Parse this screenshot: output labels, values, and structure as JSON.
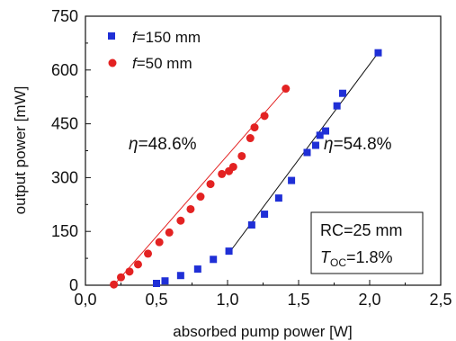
{
  "chart_data": {
    "type": "scatter",
    "xlabel": "absorbed pump power [W]",
    "ylabel": "output power [mW]",
    "xlim": [
      0.0,
      2.5
    ],
    "ylim": [
      0,
      750
    ],
    "xticks": [
      "0,0",
      "0,5",
      "1,0",
      "1,5",
      "2,0",
      "2,5"
    ],
    "xtick_values": [
      0.0,
      0.5,
      1.0,
      1.5,
      2.0,
      2.5
    ],
    "yticks": [
      "0",
      "150",
      "300",
      "450",
      "600",
      "750"
    ],
    "ytick_values": [
      0,
      150,
      300,
      450,
      600,
      750
    ],
    "grid": false,
    "legend_position": "top-left",
    "series": [
      {
        "name_prefix": "f",
        "name_rest": "=150 mm",
        "marker": "square",
        "color": "#1f2fd6",
        "x": [
          0.5,
          0.56,
          0.67,
          0.79,
          0.9,
          1.01,
          1.17,
          1.26,
          1.36,
          1.45,
          1.56,
          1.62,
          1.65,
          1.69,
          1.77,
          1.81,
          2.06
        ],
        "y": [
          5,
          12,
          27,
          45,
          72,
          95,
          168,
          198,
          243,
          292,
          370,
          390,
          418,
          430,
          500,
          535,
          648
        ],
        "fit": {
          "x": [
            1.02,
            2.06
          ],
          "y": [
            95,
            648
          ]
        }
      },
      {
        "name_prefix": "f",
        "name_rest": "=50 mm",
        "marker": "circle",
        "color": "#e32222",
        "x": [
          0.2,
          0.25,
          0.31,
          0.37,
          0.44,
          0.52,
          0.59,
          0.67,
          0.74,
          0.81,
          0.88,
          0.96,
          1.01,
          1.04,
          1.1,
          1.16,
          1.19,
          1.26,
          1.41
        ],
        "y": [
          2,
          22,
          38,
          58,
          88,
          120,
          147,
          180,
          212,
          247,
          282,
          310,
          318,
          330,
          360,
          410,
          440,
          472,
          548
        ],
        "fit": {
          "x": [
            0.2,
            1.41
          ],
          "y": [
            0,
            548
          ]
        }
      }
    ],
    "annotations": {
      "eta_symbol": "η",
      "eta_left": "=48.6%",
      "eta_right": "=54.8%",
      "rc": "RC=25 mm",
      "toc_symbol": "T",
      "toc_sub": "OC",
      "toc_value": "=1.8%"
    }
  }
}
